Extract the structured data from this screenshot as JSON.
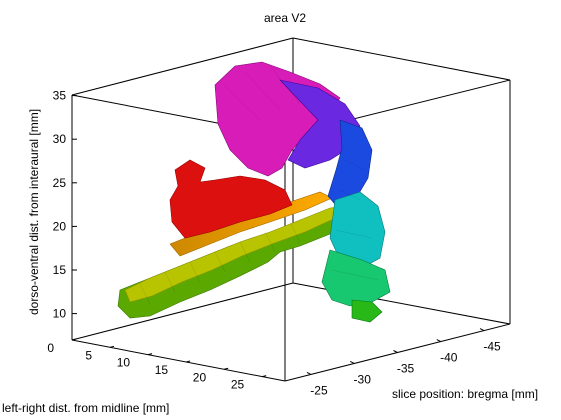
{
  "chart_data": {
    "type": "3d-surface",
    "title": "area V2",
    "xlabel": "left-right dist. from midline [mm]",
    "ylabel": "slice position: bregma [mm]",
    "zlabel": "dorso-ventral dist. from interaural [mm]",
    "x_ticks": [
      0,
      5,
      10,
      15,
      20,
      25
    ],
    "y_ticks": [
      -25,
      -30,
      -35,
      -40,
      -45
    ],
    "z_ticks": [
      10,
      15,
      20,
      25,
      30,
      35
    ],
    "y_tick_labels": [
      "-25",
      "-30",
      "-35",
      "-40",
      "-45"
    ],
    "colormap": "hsv",
    "box": true,
    "grid": false
  }
}
